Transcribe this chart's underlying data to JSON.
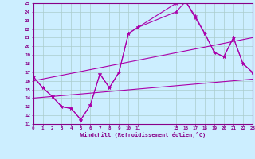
{
  "xlabel": "Windchill (Refroidissement éolien,°C)",
  "bg_color": "#cceeff",
  "grid_color": "#aacccc",
  "line_color": "#aa00aa",
  "ylim": [
    11,
    25
  ],
  "xlim": [
    0,
    23
  ],
  "yticks": [
    11,
    12,
    13,
    14,
    15,
    16,
    17,
    18,
    19,
    20,
    21,
    22,
    23,
    24,
    25
  ],
  "xticks": [
    0,
    1,
    2,
    3,
    4,
    5,
    6,
    7,
    8,
    9,
    10,
    11,
    15,
    16,
    17,
    18,
    19,
    20,
    21,
    22,
    23
  ],
  "line1_x": [
    0,
    1,
    2,
    3,
    4,
    5,
    6,
    7,
    8,
    9,
    10,
    11,
    15,
    16,
    17,
    18,
    19,
    20,
    21,
    22,
    23
  ],
  "line1_y": [
    16.5,
    15.2,
    14.2,
    13.0,
    12.8,
    11.5,
    13.2,
    16.8,
    15.2,
    17.0,
    21.5,
    22.2,
    25.0,
    25.2,
    23.5,
    21.5,
    19.3,
    18.8,
    21.0,
    18.0,
    17.0
  ],
  "line2_x": [
    0,
    1,
    2,
    3,
    4,
    5,
    6,
    7,
    8,
    9,
    10,
    11,
    15,
    16,
    17,
    18,
    19,
    20,
    21,
    22,
    23
  ],
  "line2_y": [
    16.5,
    15.2,
    14.2,
    13.0,
    12.8,
    11.5,
    13.2,
    16.8,
    15.2,
    17.0,
    21.5,
    22.2,
    24.0,
    25.2,
    23.3,
    21.5,
    19.3,
    18.8,
    21.0,
    18.0,
    17.0
  ],
  "line3_x": [
    0,
    23
  ],
  "line3_y": [
    16.0,
    21.0
  ],
  "line4_x": [
    0,
    23
  ],
  "line4_y": [
    14.0,
    16.2
  ]
}
